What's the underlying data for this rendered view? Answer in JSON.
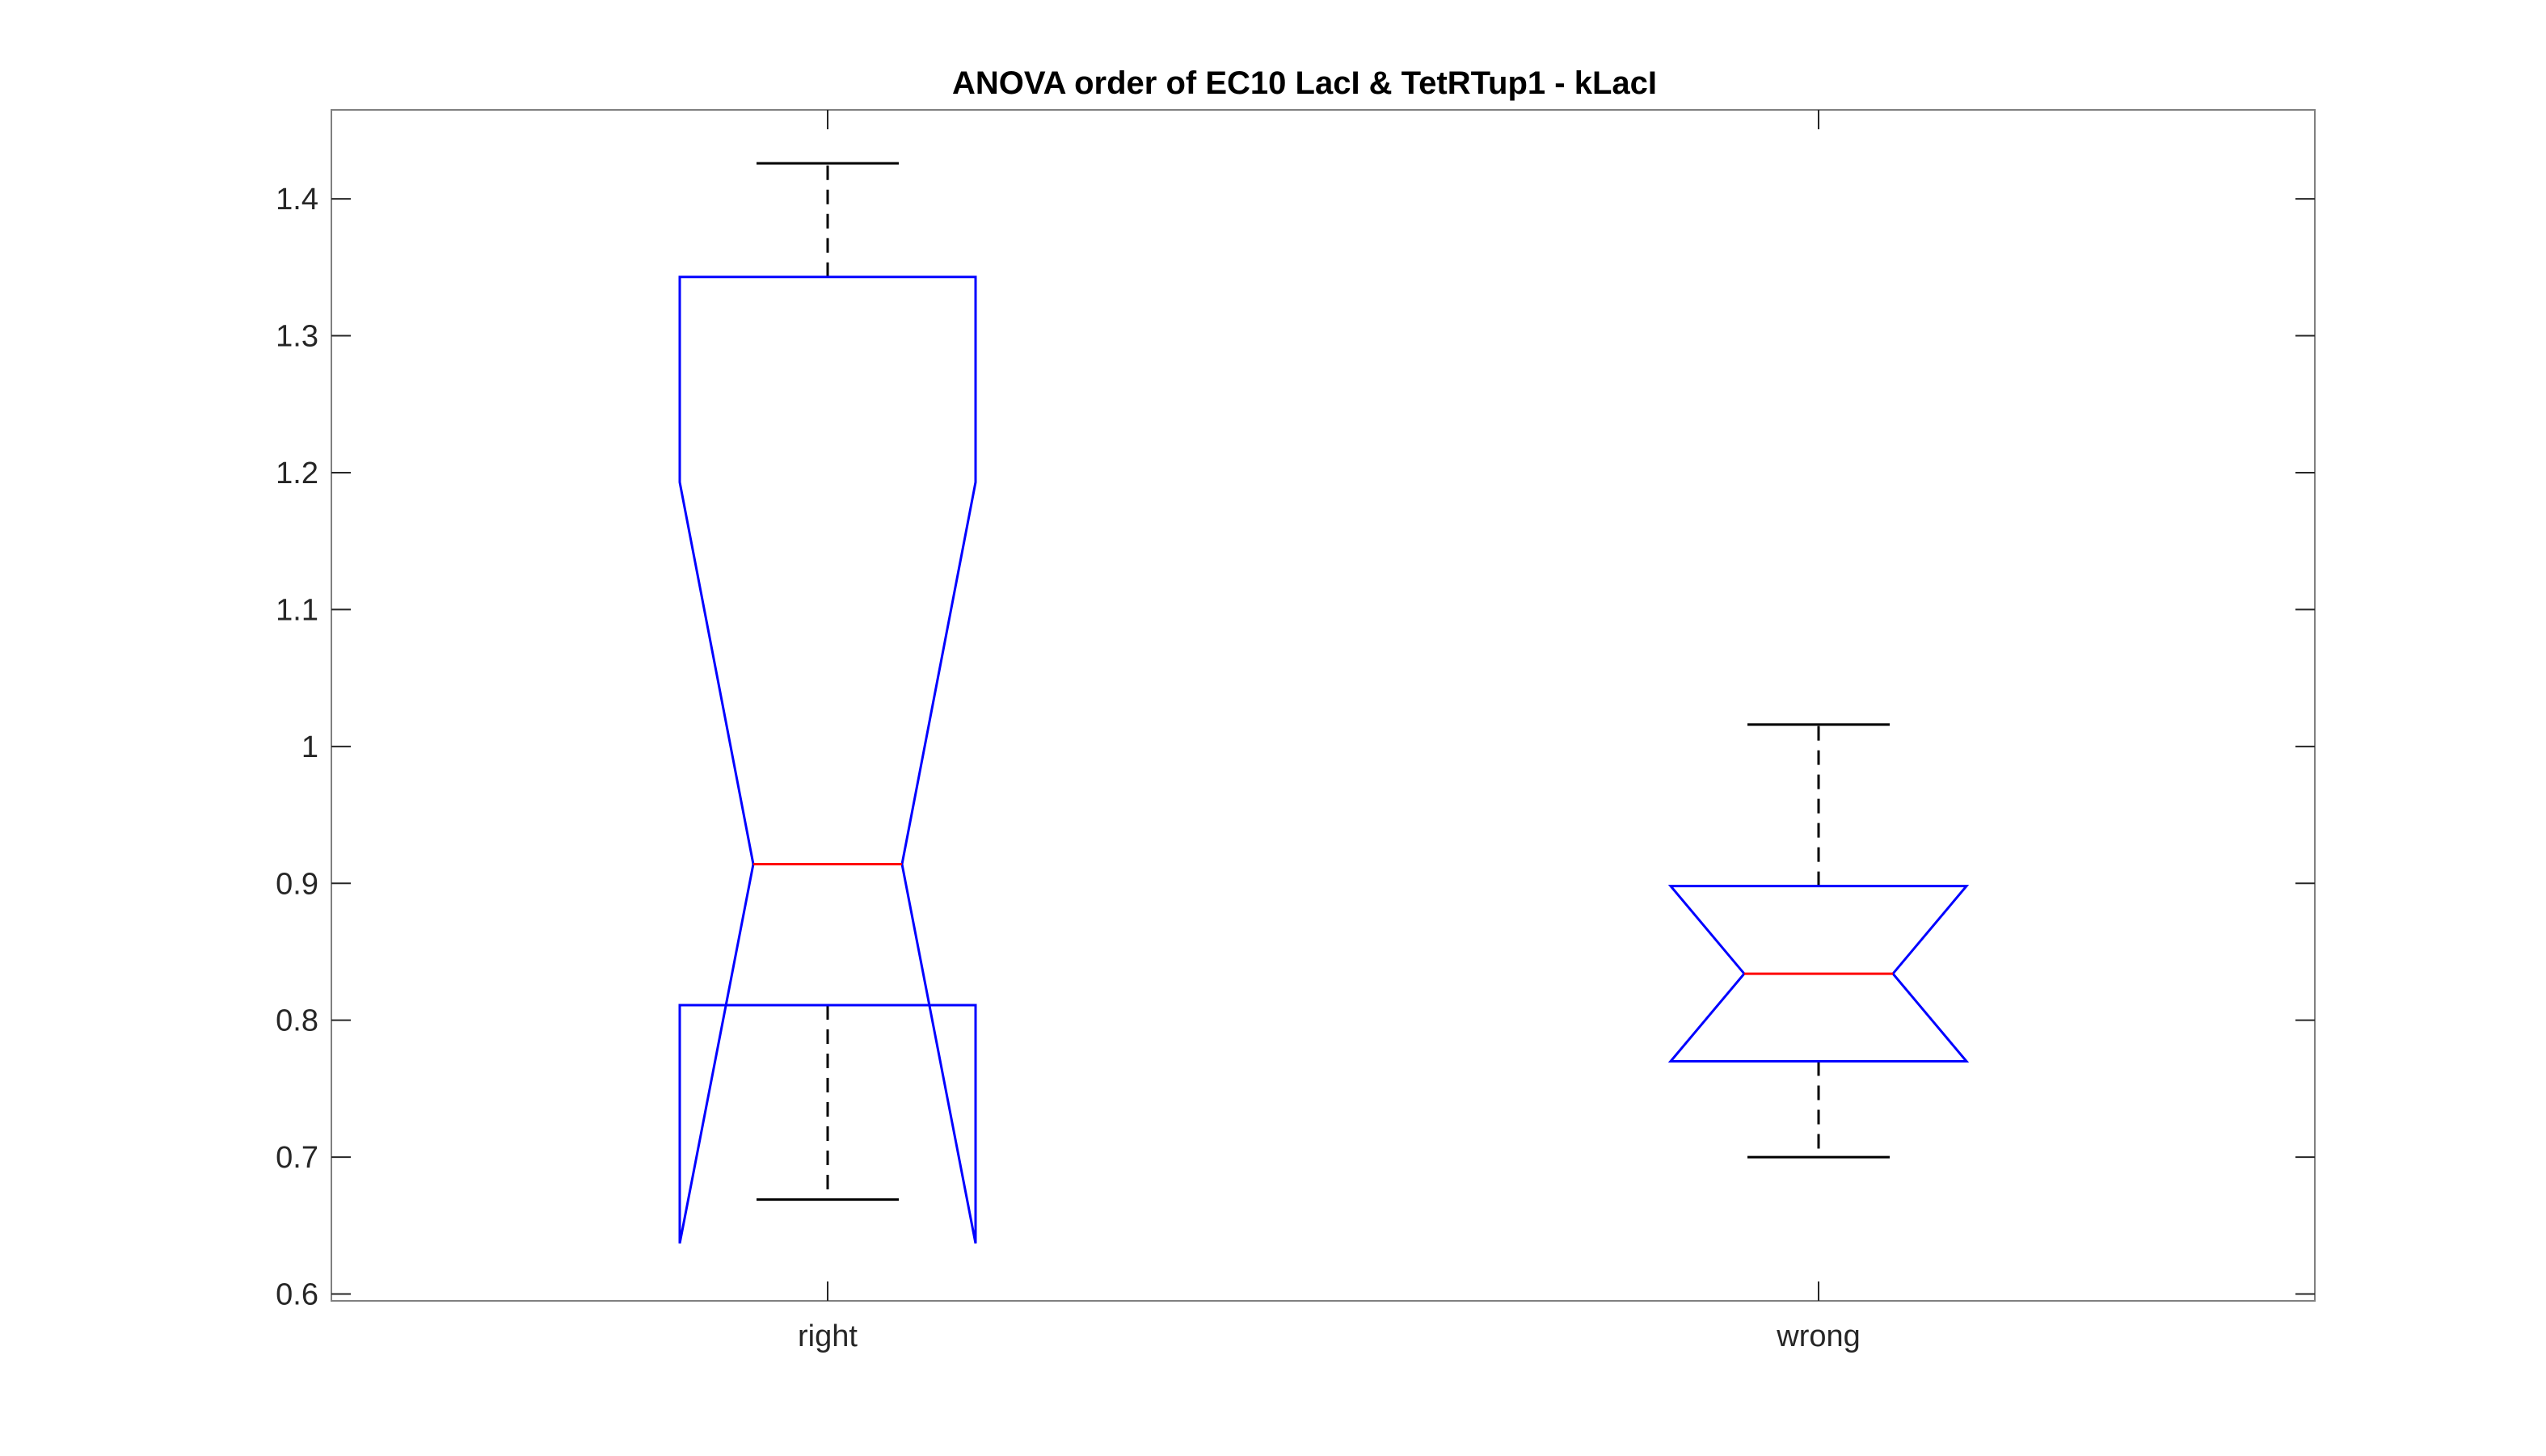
{
  "chart_data": {
    "type": "boxplot",
    "title": "ANOVA order of EC10 LacI & TetRTup1 - kLacI",
    "xlabel": "",
    "ylabel": "",
    "categories": [
      "right",
      "wrong"
    ],
    "ylim": [
      0.595,
      1.465
    ],
    "yticks": [
      0.6,
      0.7,
      0.8,
      0.9,
      1,
      1.1,
      1.2,
      1.3,
      1.4
    ],
    "ytick_labels": [
      "0.6",
      "0.7",
      "0.8",
      "0.9",
      "1",
      "1.1",
      "1.2",
      "1.3",
      "1.4"
    ],
    "notched": true,
    "boxes": [
      {
        "category": "right",
        "lower_whisker": 0.669,
        "q1": 0.811,
        "median": 0.914,
        "q3": 1.343,
        "upper_whisker": 1.426,
        "notch_low": 0.637,
        "notch_high": 1.193
      },
      {
        "category": "wrong",
        "lower_whisker": 0.7,
        "q1": 0.77,
        "median": 0.834,
        "q3": 0.898,
        "upper_whisker": 1.016,
        "notch_low": 0.77,
        "notch_high": 0.898
      }
    ],
    "colors": {
      "box": "#0000ff",
      "median": "#ff0000",
      "whisker": "#000000",
      "axes": "#262626",
      "tick": "#808080"
    },
    "grid": false
  }
}
